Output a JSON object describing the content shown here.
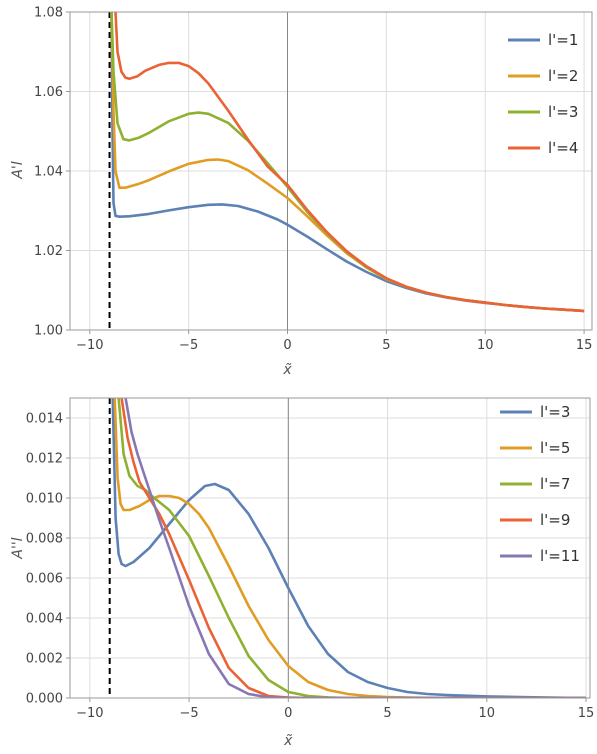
{
  "chart_data": [
    {
      "type": "line",
      "ylabel": "A'l",
      "xlabel": "x̃",
      "xlim": [
        -11,
        15.4
      ],
      "ylim": [
        1.0,
        1.08
      ],
      "xticks": [
        -10,
        -5,
        0,
        5,
        10,
        15
      ],
      "xtick_labels": [
        "−10",
        "−5",
        "0",
        "5",
        "10",
        "15"
      ],
      "yticks": [
        1.0,
        1.02,
        1.04,
        1.06,
        1.08
      ],
      "ytick_labels": [
        "1.00",
        "1.02",
        "1.04",
        "1.06",
        "1.08"
      ],
      "grid": true,
      "legend_position": "top-right",
      "vertical_dashed_line_x": -9,
      "series": [
        {
          "name": "l'=1",
          "color": "#5e81b5",
          "x": [
            -8.9,
            -8.85,
            -8.8,
            -8.7,
            -8.5,
            -8,
            -7,
            -6,
            -5,
            -4,
            -3.3,
            -2.5,
            -1.5,
            -0.5,
            0,
            1,
            2,
            3,
            4,
            5,
            6,
            7,
            8,
            9,
            10,
            11,
            12,
            13,
            14,
            15
          ],
          "y": [
            1.08,
            1.05,
            1.032,
            1.0287,
            1.0285,
            1.0286,
            1.0292,
            1.0301,
            1.0309,
            1.0315,
            1.0316,
            1.0312,
            1.0298,
            1.0278,
            1.0265,
            1.0235,
            1.0203,
            1.0172,
            1.0146,
            1.0123,
            1.0106,
            1.0092,
            1.0082,
            1.0074,
            1.0068,
            1.0063,
            1.0058,
            1.0054,
            1.0051,
            1.0048
          ]
        },
        {
          "name": "l'=2",
          "color": "#e19c24",
          "x": [
            -8.9,
            -8.8,
            -8.7,
            -8.5,
            -8.2,
            -7.5,
            -7,
            -6,
            -5,
            -4,
            -3.5,
            -3,
            -2,
            -1,
            0,
            1,
            2,
            3,
            4,
            5,
            6,
            7,
            8,
            9,
            10,
            11,
            12,
            13,
            14,
            15
          ],
          "y": [
            1.08,
            1.055,
            1.04,
            1.0358,
            1.0358,
            1.0368,
            1.0377,
            1.0399,
            1.0418,
            1.0428,
            1.0429,
            1.0425,
            1.0402,
            1.0368,
            1.0332,
            1.0286,
            1.0238,
            1.0193,
            1.0157,
            1.0128,
            1.0109,
            1.0094,
            1.0083,
            1.0075,
            1.0069,
            1.0063,
            1.0058,
            1.0054,
            1.0051,
            1.0048
          ]
        },
        {
          "name": "l'=3",
          "color": "#8fb131",
          "x": [
            -8.9,
            -8.8,
            -8.6,
            -8.3,
            -8,
            -7.5,
            -7,
            -6,
            -5,
            -4.5,
            -4,
            -3,
            -2,
            -1,
            0,
            1,
            2,
            3,
            4,
            5,
            6,
            7,
            8,
            9,
            10,
            11,
            12,
            13,
            14,
            15
          ],
          "y": [
            1.08,
            1.065,
            1.052,
            1.048,
            1.0477,
            1.0484,
            1.0496,
            1.0525,
            1.0544,
            1.0547,
            1.0544,
            1.0521,
            1.0476,
            1.0419,
            1.036,
            1.0297,
            1.0243,
            1.0196,
            1.0158,
            1.0129,
            1.0109,
            1.0094,
            1.0083,
            1.0075,
            1.0069,
            1.0063,
            1.0058,
            1.0054,
            1.0051,
            1.0048
          ]
        },
        {
          "name": "l'=4",
          "color": "#eb6235",
          "x": [
            -8.7,
            -8.6,
            -8.4,
            -8.2,
            -8,
            -7.6,
            -7.2,
            -6.5,
            -6,
            -5.5,
            -5,
            -4.5,
            -4,
            -3,
            -2,
            -1,
            0,
            1,
            2,
            3,
            4,
            5,
            6,
            7,
            8,
            9,
            10,
            11,
            12,
            13,
            14,
            15
          ],
          "y": [
            1.08,
            1.07,
            1.065,
            1.0635,
            1.0632,
            1.0638,
            1.0652,
            1.0667,
            1.0672,
            1.0672,
            1.0664,
            1.0646,
            1.062,
            1.0552,
            1.0479,
            1.0411,
            1.0365,
            1.0302,
            1.0246,
            1.0198,
            1.016,
            1.013,
            1.0109,
            1.0094,
            1.0083,
            1.0075,
            1.0069,
            1.0063,
            1.0058,
            1.0054,
            1.0051,
            1.0048
          ]
        }
      ]
    },
    {
      "type": "line",
      "ylabel": "A''l",
      "xlabel": "x̃",
      "xlim": [
        -11,
        15.2
      ],
      "ylim": [
        0.0,
        0.015
      ],
      "xticks": [
        -10,
        -5,
        0,
        5,
        10,
        15
      ],
      "xtick_labels": [
        "−10",
        "−5",
        "0",
        "5",
        "10",
        "15"
      ],
      "yticks": [
        0.0,
        0.002,
        0.004,
        0.006,
        0.008,
        0.01,
        0.012,
        0.014
      ],
      "ytick_labels": [
        "0.000",
        "0.002",
        "0.004",
        "0.006",
        "0.008",
        "0.010",
        "0.012",
        "0.014"
      ],
      "grid": true,
      "legend_position": "top-right",
      "vertical_dashed_line_x": -9,
      "series": [
        {
          "name": "l'=3",
          "color": "#5e81b5",
          "x": [
            -8.85,
            -8.7,
            -8.55,
            -8.4,
            -8.2,
            -7.8,
            -7,
            -6,
            -5,
            -4.2,
            -3.7,
            -3,
            -2,
            -1,
            0,
            1,
            2,
            3,
            4,
            5,
            6,
            7,
            8,
            10,
            12,
            14,
            15
          ],
          "y": [
            0.015,
            0.009,
            0.0072,
            0.0067,
            0.0066,
            0.0068,
            0.0075,
            0.0087,
            0.0099,
            0.0106,
            0.0107,
            0.0104,
            0.0092,
            0.0075,
            0.0055,
            0.0036,
            0.0022,
            0.0013,
            0.0008,
            0.0005,
            0.0003,
            0.0002,
            0.00015,
            8e-05,
            4e-05,
            1e-05,
            0.0
          ]
        },
        {
          "name": "l'=5",
          "color": "#e19c24",
          "x": [
            -8.75,
            -8.6,
            -8.45,
            -8.3,
            -8,
            -7.5,
            -7,
            -6.5,
            -6,
            -5.5,
            -5,
            -4.5,
            -4,
            -3,
            -2,
            -1,
            0,
            1,
            2,
            3,
            4,
            5,
            6,
            8,
            10,
            12,
            15
          ],
          "y": [
            0.015,
            0.011,
            0.0097,
            0.0094,
            0.0094,
            0.0096,
            0.0099,
            0.0101,
            0.0101,
            0.01,
            0.0097,
            0.0092,
            0.0085,
            0.0066,
            0.0046,
            0.0029,
            0.0016,
            0.0008,
            0.0004,
            0.0002,
            0.0001,
            5e-05,
            2e-05,
            0.0,
            0.0,
            0.0,
            0.0
          ]
        },
        {
          "name": "l'=7",
          "color": "#8fb131",
          "x": [
            -8.55,
            -8.3,
            -8,
            -7.6,
            -7.2,
            -7,
            -6.5,
            -6,
            -5,
            -4,
            -3,
            -2,
            -1,
            0,
            1,
            2,
            3,
            4,
            6,
            8,
            10,
            15
          ],
          "y": [
            0.015,
            0.0122,
            0.0111,
            0.0106,
            0.0104,
            0.0102,
            0.0098,
            0.0094,
            0.0081,
            0.0061,
            0.004,
            0.0021,
            0.0009,
            0.0003,
            0.0001,
            3e-05,
            0.0,
            0.0,
            0.0,
            0.0,
            0.0,
            0.0
          ]
        },
        {
          "name": "l'=9",
          "color": "#eb6235",
          "x": [
            -8.4,
            -8.1,
            -7.8,
            -7.5,
            -7,
            -6.5,
            -6,
            -5,
            -4,
            -3,
            -2,
            -1,
            0,
            1,
            2,
            3,
            4,
            6,
            10,
            15
          ],
          "y": [
            0.015,
            0.013,
            0.0118,
            0.0108,
            0.01,
            0.0092,
            0.0082,
            0.0059,
            0.0035,
            0.0015,
            0.0005,
            0.0001,
            2e-05,
            0.0,
            0.0,
            0.0,
            0.0,
            0.0,
            0.0,
            0.0
          ]
        },
        {
          "name": "l'=11",
          "color": "#8778b3",
          "x": [
            -8.2,
            -7.9,
            -7.6,
            -7.3,
            -7,
            -6.5,
            -6,
            -5,
            -4,
            -3,
            -2,
            -1,
            0,
            1,
            2,
            4,
            10,
            15
          ],
          "y": [
            0.015,
            0.0133,
            0.0122,
            0.0113,
            0.0104,
            0.0089,
            0.0075,
            0.0046,
            0.0022,
            0.0007,
            0.0002,
            3e-05,
            0.0,
            0.0,
            0.0,
            0.0,
            0.0,
            0.0
          ]
        }
      ]
    }
  ]
}
